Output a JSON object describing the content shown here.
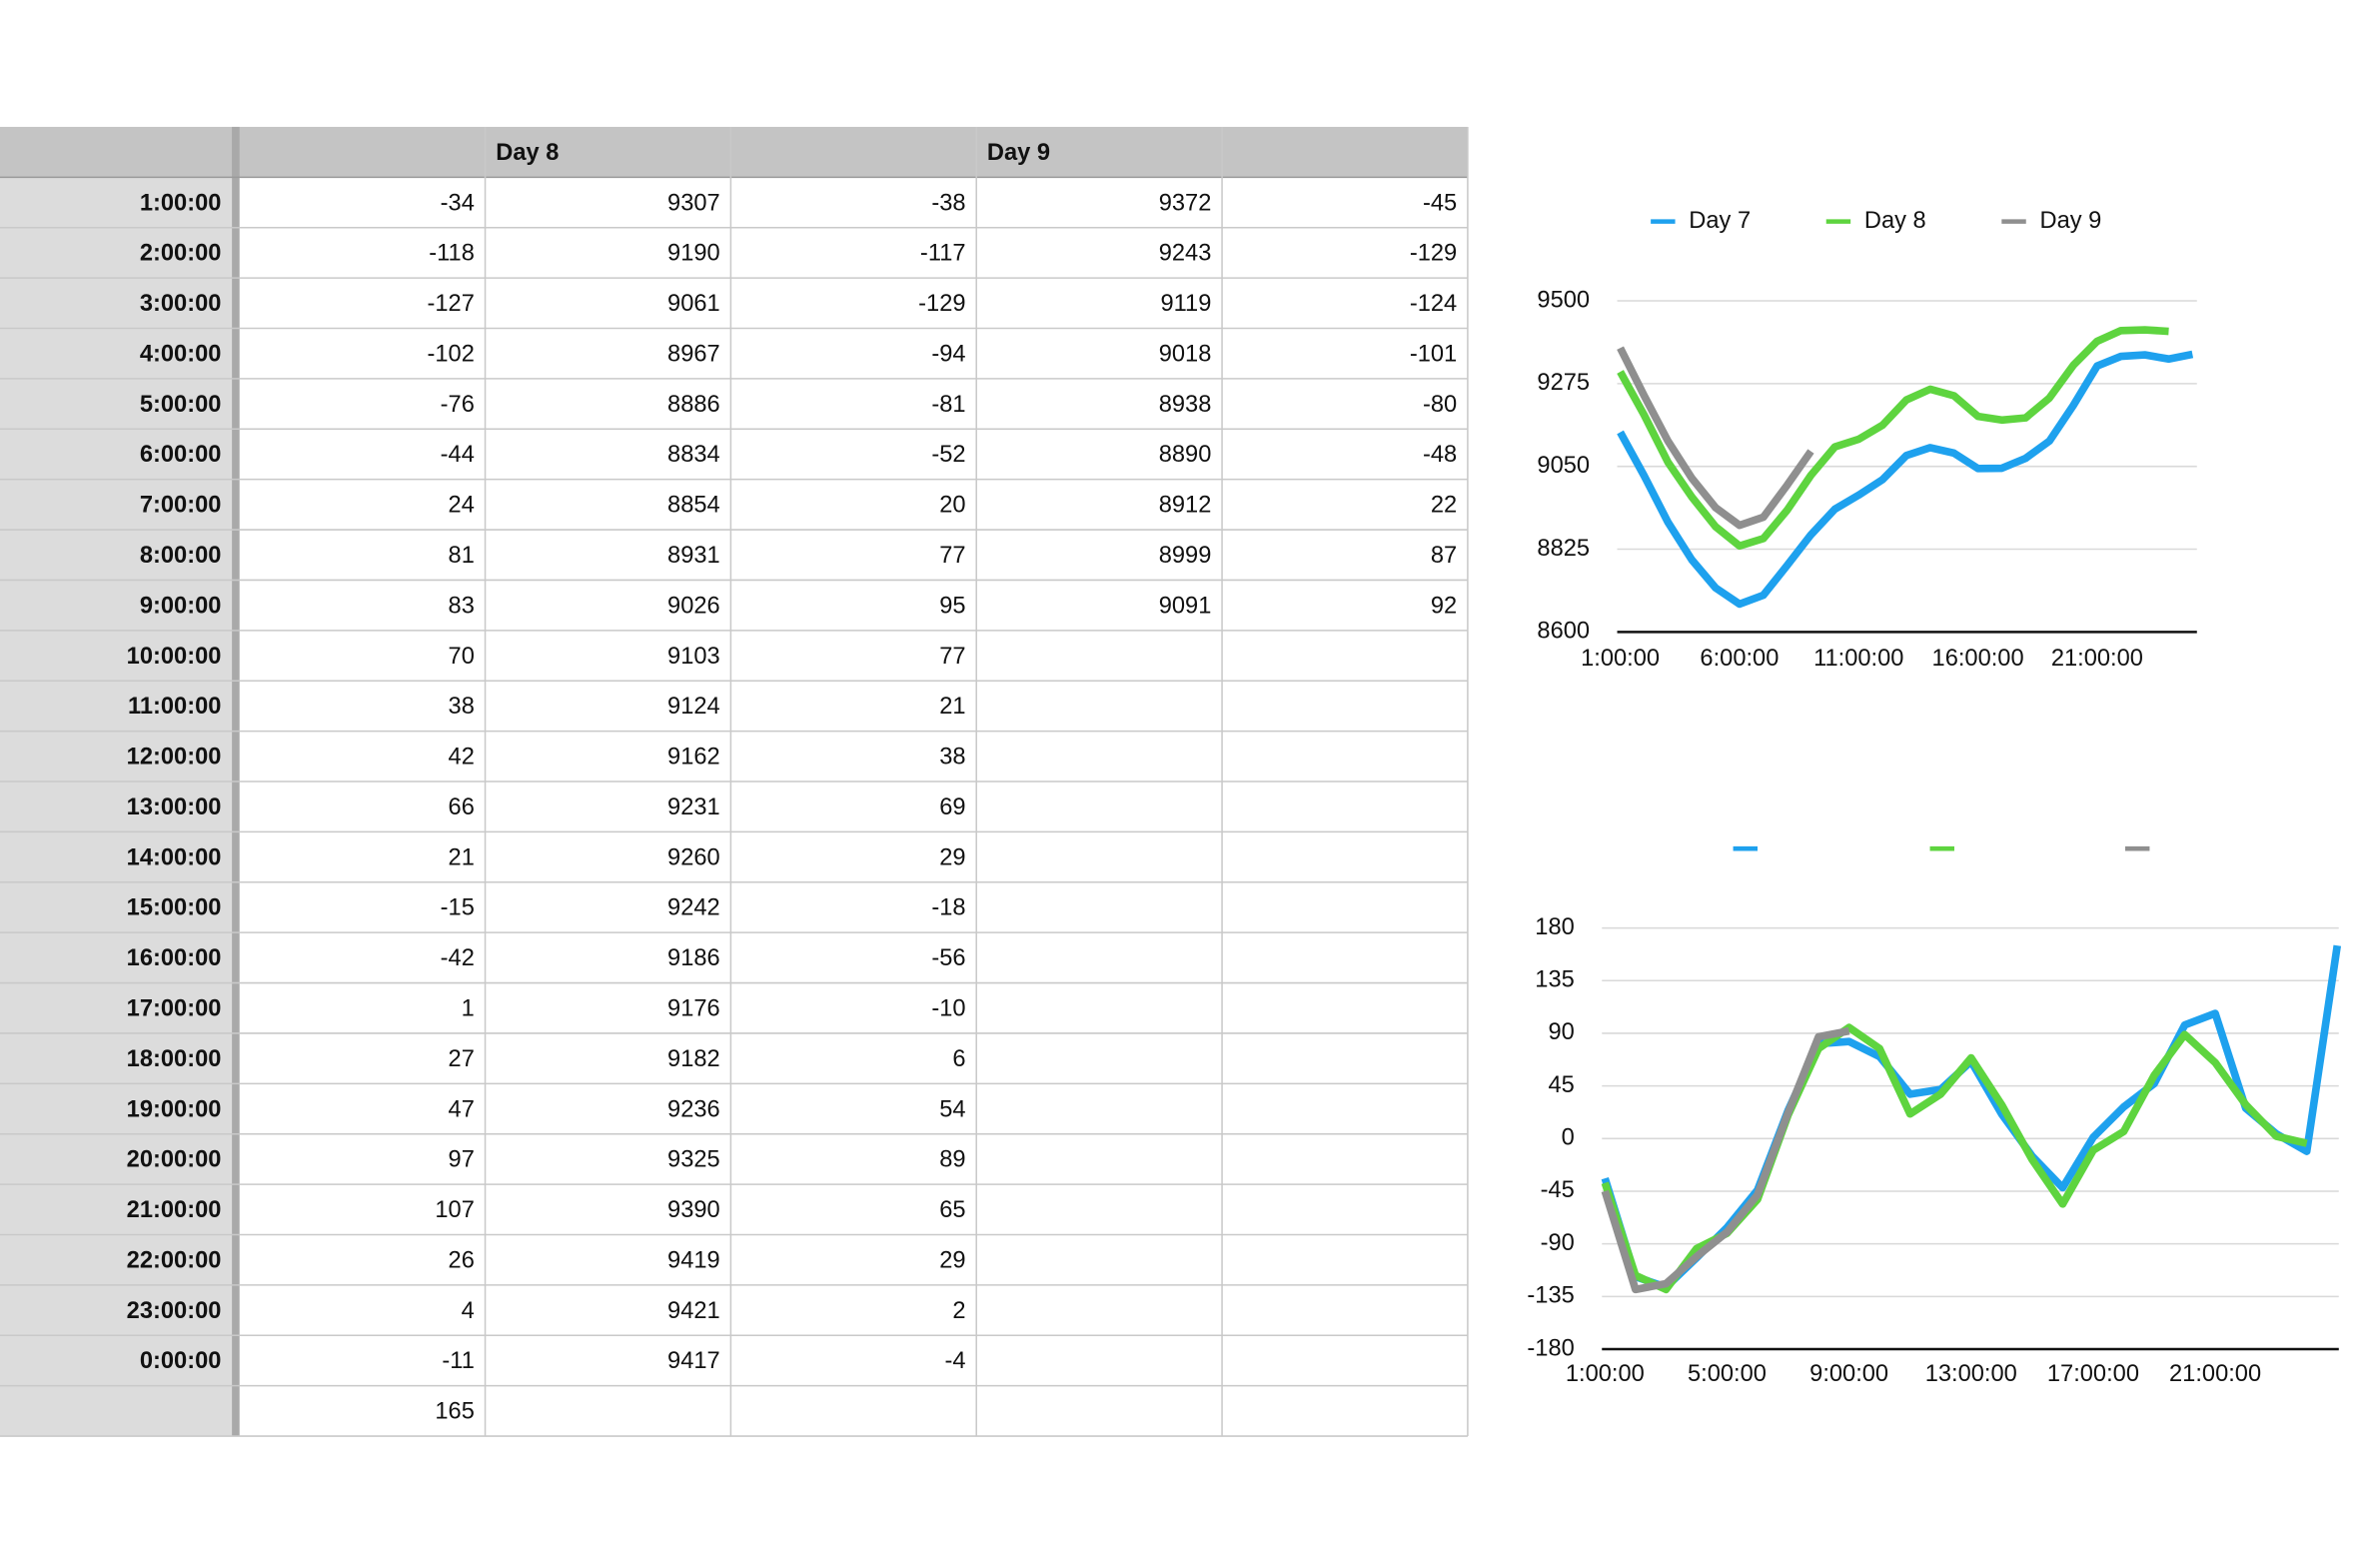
{
  "table": {
    "columns": [
      null,
      "Day 8",
      null,
      "Day 9",
      null
    ],
    "rows": [
      {
        "label": "1:00:00",
        "cells": [
          -34,
          9307,
          -38,
          9372,
          -45
        ]
      },
      {
        "label": "2:00:00",
        "cells": [
          -118,
          9190,
          -117,
          9243,
          -129
        ]
      },
      {
        "label": "3:00:00",
        "cells": [
          -127,
          9061,
          -129,
          9119,
          -124
        ]
      },
      {
        "label": "4:00:00",
        "cells": [
          -102,
          8967,
          -94,
          9018,
          -101
        ]
      },
      {
        "label": "5:00:00",
        "cells": [
          -76,
          8886,
          -81,
          8938,
          -80
        ]
      },
      {
        "label": "6:00:00",
        "cells": [
          -44,
          8834,
          -52,
          8890,
          -48
        ]
      },
      {
        "label": "7:00:00",
        "cells": [
          24,
          8854,
          20,
          8912,
          22
        ]
      },
      {
        "label": "8:00:00",
        "cells": [
          81,
          8931,
          77,
          8999,
          87
        ]
      },
      {
        "label": "9:00:00",
        "cells": [
          83,
          9026,
          95,
          9091,
          92
        ]
      },
      {
        "label": "10:00:00",
        "cells": [
          70,
          9103,
          77,
          null,
          null
        ]
      },
      {
        "label": "11:00:00",
        "cells": [
          38,
          9124,
          21,
          null,
          null
        ]
      },
      {
        "label": "12:00:00",
        "cells": [
          42,
          9162,
          38,
          null,
          null
        ]
      },
      {
        "label": "13:00:00",
        "cells": [
          66,
          9231,
          69,
          null,
          null
        ]
      },
      {
        "label": "14:00:00",
        "cells": [
          21,
          9260,
          29,
          null,
          null
        ]
      },
      {
        "label": "15:00:00",
        "cells": [
          -15,
          9242,
          -18,
          null,
          null
        ]
      },
      {
        "label": "16:00:00",
        "cells": [
          -42,
          9186,
          -56,
          null,
          null
        ]
      },
      {
        "label": "17:00:00",
        "cells": [
          1,
          9176,
          -10,
          null,
          null
        ]
      },
      {
        "label": "18:00:00",
        "cells": [
          27,
          9182,
          6,
          null,
          null
        ]
      },
      {
        "label": "19:00:00",
        "cells": [
          47,
          9236,
          54,
          null,
          null
        ]
      },
      {
        "label": "20:00:00",
        "cells": [
          97,
          9325,
          89,
          null,
          null
        ]
      },
      {
        "label": "21:00:00",
        "cells": [
          107,
          9390,
          65,
          null,
          null
        ]
      },
      {
        "label": "22:00:00",
        "cells": [
          26,
          9419,
          29,
          null,
          null
        ]
      },
      {
        "label": "23:00:00",
        "cells": [
          4,
          9421,
          2,
          null,
          null
        ]
      },
      {
        "label": "0:00:00",
        "cells": [
          -11,
          9417,
          -4,
          null,
          null
        ]
      },
      {
        "label": null,
        "cells": [
          165,
          null,
          null,
          null,
          null
        ]
      }
    ]
  },
  "charts": [
    {
      "type": "line",
      "categories": [
        "1:00:00",
        null,
        null,
        null,
        null,
        "6:00:00",
        null,
        null,
        null,
        null,
        "11:00:00",
        null,
        null,
        null,
        null,
        "16:00:00",
        null,
        null,
        null,
        null,
        "21:00:00",
        null,
        null,
        null,
        null
      ],
      "series": [
        {
          "name": "Day 7",
          "color": "#1ea1ee",
          "values": [
            9143,
            9025,
            8898,
            8796,
            8720,
            8676,
            8700,
            8781,
            8864,
            8934,
            8972,
            9014,
            9080,
            9101,
            9086,
            9044,
            9045,
            9072,
            9119,
            9216,
            9323,
            9349,
            9353,
            9342,
            9355
          ]
        },
        {
          "name": "Day 8",
          "color": "#5ed43f",
          "values": [
            9307,
            9190,
            9061,
            8967,
            8886,
            8834,
            8854,
            8931,
            9026,
            9103,
            9124,
            9162,
            9231,
            9260,
            9242,
            9186,
            9176,
            9182,
            9236,
            9325,
            9390,
            9419,
            9421,
            9417
          ]
        },
        {
          "name": "Day 9",
          "color": "#8f8f8f",
          "values": [
            9372,
            9243,
            9119,
            9018,
            8938,
            8890,
            8912,
            8999,
            9091
          ]
        }
      ],
      "ylim": [
        8600,
        9500
      ],
      "yticks": [
        8600,
        8825,
        9050,
        9275,
        9500
      ],
      "grid": true,
      "legend": "top"
    },
    {
      "type": "line",
      "categories": [
        "1:00:00",
        null,
        null,
        null,
        "5:00:00",
        null,
        null,
        null,
        "9:00:00",
        null,
        null,
        null,
        "13:00:00",
        null,
        null,
        null,
        "17:00:00",
        null,
        null,
        null,
        "21:00:00",
        null,
        null,
        null,
        null
      ],
      "series": [
        {
          "color": "#1ea1ee",
          "values": [
            -34,
            -118,
            -127,
            -102,
            -76,
            -44,
            24,
            81,
            83,
            70,
            38,
            42,
            66,
            21,
            -15,
            -42,
            1,
            27,
            47,
            97,
            107,
            26,
            4,
            -11,
            165
          ]
        },
        {
          "color": "#5ed43f",
          "values": [
            -38,
            -117,
            -129,
            -94,
            -81,
            -52,
            20,
            77,
            95,
            77,
            21,
            38,
            69,
            29,
            -18,
            -56,
            -10,
            6,
            54,
            89,
            65,
            29,
            2,
            -4
          ]
        },
        {
          "color": "#8f8f8f",
          "values": [
            -45,
            -129,
            -124,
            -101,
            -80,
            -48,
            22,
            87,
            92
          ]
        }
      ],
      "ylim": [
        -180,
        180
      ],
      "yticks": [
        -180,
        -135,
        -90,
        -45,
        0,
        45,
        90,
        135,
        180
      ],
      "grid": true,
      "legend": "top"
    }
  ]
}
